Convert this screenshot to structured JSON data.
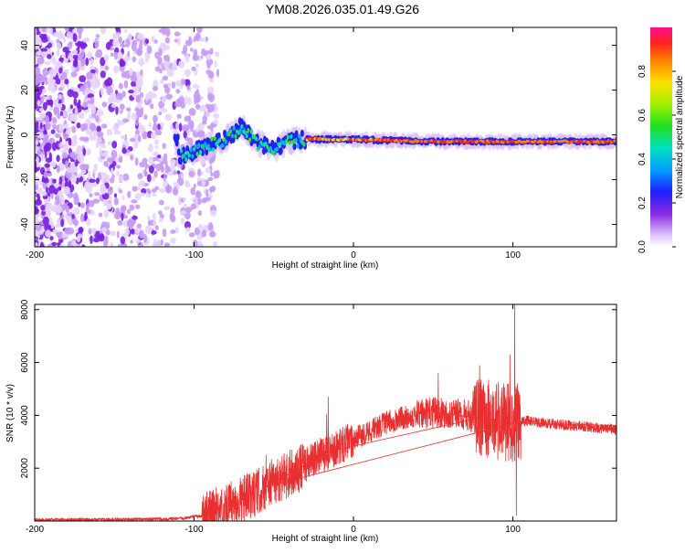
{
  "title": "YM08.2026.035.01.49.G26",
  "chart_data": [
    {
      "type": "heatmap",
      "name": "spectrogram",
      "xlabel": "Height of straight line (km)",
      "ylabel": "Frequency (Hz)",
      "xlim": [
        -200,
        165
      ],
      "ylim": [
        -50,
        48
      ],
      "xticks": [
        -200,
        -100,
        0,
        100
      ],
      "yticks": [
        -40,
        -20,
        0,
        20,
        40
      ],
      "colorbar": {
        "label": "Normalized spectral amplitude",
        "range": [
          0,
          1
        ],
        "ticks": [
          "0.0",
          "0.2",
          "0.4",
          "0.6",
          "0.8"
        ],
        "tick_values": [
          0,
          0.2,
          0.4,
          0.6,
          0.8
        ]
      },
      "description_points": {
        "noise_region_x": [
          -200,
          -95
        ],
        "ridge_start_x": -110,
        "ridge_points": [
          {
            "x": -110,
            "y": -10
          },
          {
            "x": -95,
            "y": -6
          },
          {
            "x": -80,
            "y": -2
          },
          {
            "x": -70,
            "y": 4
          },
          {
            "x": -60,
            "y": -4
          },
          {
            "x": -50,
            "y": -6
          },
          {
            "x": -40,
            "y": -3
          },
          {
            "x": -30,
            "y": -2
          },
          {
            "x": 0,
            "y": -2
          },
          {
            "x": 50,
            "y": -3
          },
          {
            "x": 100,
            "y": -3
          },
          {
            "x": 165,
            "y": -3
          }
        ]
      }
    },
    {
      "type": "line",
      "name": "snr",
      "xlabel": "Height of straight line (km)",
      "ylabel": "SNR (10 * v/v)",
      "xlim": [
        -200,
        165
      ],
      "ylim": [
        0,
        8200
      ],
      "xticks": [
        -200,
        -100,
        0,
        100
      ],
      "yticks": [
        2000,
        4000,
        6000,
        8000
      ],
      "line_color": "#e83030",
      "envelope": [
        {
          "x": -200,
          "y": 40
        },
        {
          "x": -150,
          "y": 60
        },
        {
          "x": -110,
          "y": 80
        },
        {
          "x": -95,
          "y": 200
        },
        {
          "x": -80,
          "y": 500
        },
        {
          "x": -70,
          "y": 800
        },
        {
          "x": -60,
          "y": 1100
        },
        {
          "x": -50,
          "y": 1500
        },
        {
          "x": -40,
          "y": 1800
        },
        {
          "x": -30,
          "y": 2100
        },
        {
          "x": -20,
          "y": 2500
        },
        {
          "x": -10,
          "y": 2800
        },
        {
          "x": 0,
          "y": 3100
        },
        {
          "x": 10,
          "y": 3400
        },
        {
          "x": 20,
          "y": 3700
        },
        {
          "x": 30,
          "y": 3900
        },
        {
          "x": 40,
          "y": 4000
        },
        {
          "x": 50,
          "y": 4100
        },
        {
          "x": 60,
          "y": 4100
        },
        {
          "x": 70,
          "y": 4000
        },
        {
          "x": 80,
          "y": 3900
        },
        {
          "x": 90,
          "y": 3800
        },
        {
          "x": 100,
          "y": 3700
        },
        {
          "x": 110,
          "y": 3800
        },
        {
          "x": 120,
          "y": 3700
        },
        {
          "x": 140,
          "y": 3600
        },
        {
          "x": 165,
          "y": 3450
        }
      ],
      "spikes": [
        {
          "x": 101,
          "y": 8200
        },
        {
          "x": 98,
          "y": 6300
        },
        {
          "x": 97,
          "y": 5200
        },
        {
          "x": 53,
          "y": 5600
        },
        {
          "x": 79,
          "y": 5900
        },
        {
          "x": -16,
          "y": 4700
        },
        {
          "x": -17,
          "y": 4050
        },
        {
          "x": -27,
          "y": 2900
        },
        {
          "x": -40,
          "y": 2700
        },
        {
          "x": -55,
          "y": 2500
        },
        {
          "x": 102,
          "y": 200
        }
      ]
    }
  ]
}
